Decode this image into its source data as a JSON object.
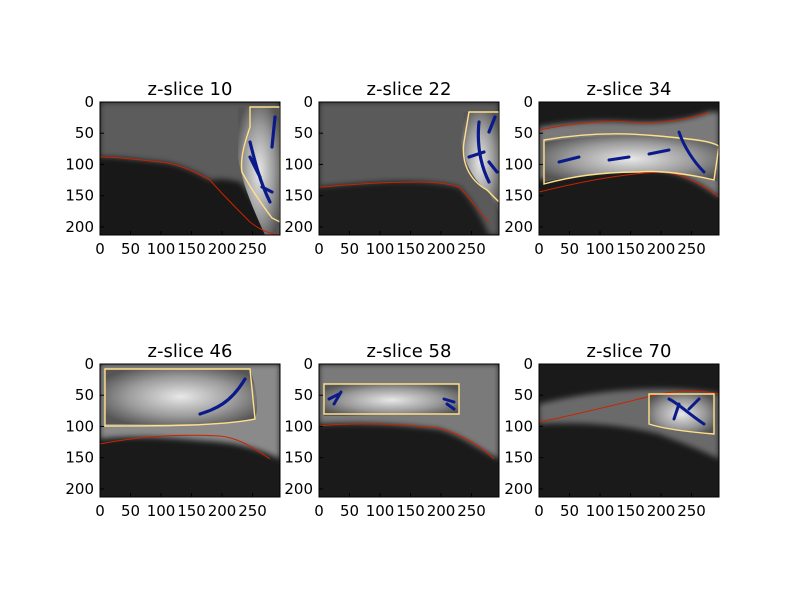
{
  "figure": {
    "colors": {
      "outer_contour": "#cc2200",
      "inner_contour": "#ffe08a",
      "skeleton": "#0b1a8a"
    },
    "panels": [
      {
        "title": "z-slice 10",
        "xticks": [
          "0",
          "50",
          "100",
          "150",
          "200",
          "250"
        ],
        "yticks": [
          "0",
          "50",
          "100",
          "150",
          "200"
        ]
      },
      {
        "title": "z-slice 22",
        "xticks": [
          "0",
          "50",
          "100",
          "150",
          "200",
          "250"
        ],
        "yticks": [
          "0",
          "50",
          "100",
          "150",
          "200"
        ]
      },
      {
        "title": "z-slice 34",
        "xticks": [
          "0",
          "50",
          "100",
          "150",
          "200",
          "250"
        ],
        "yticks": [
          "0",
          "50",
          "100",
          "150",
          "200"
        ]
      },
      {
        "title": "z-slice 46",
        "xticks": [
          "0",
          "50",
          "100",
          "150",
          "200",
          "250"
        ],
        "yticks": [
          "0",
          "50",
          "100",
          "150",
          "200"
        ]
      },
      {
        "title": "z-slice 58",
        "xticks": [
          "0",
          "50",
          "100",
          "150",
          "200",
          "250"
        ],
        "yticks": [
          "0",
          "50",
          "100",
          "150",
          "200"
        ]
      },
      {
        "title": "z-slice 70",
        "xticks": [
          "0",
          "50",
          "100",
          "150",
          "200",
          "250"
        ],
        "yticks": [
          "0",
          "50",
          "100",
          "150",
          "200"
        ]
      }
    ]
  }
}
